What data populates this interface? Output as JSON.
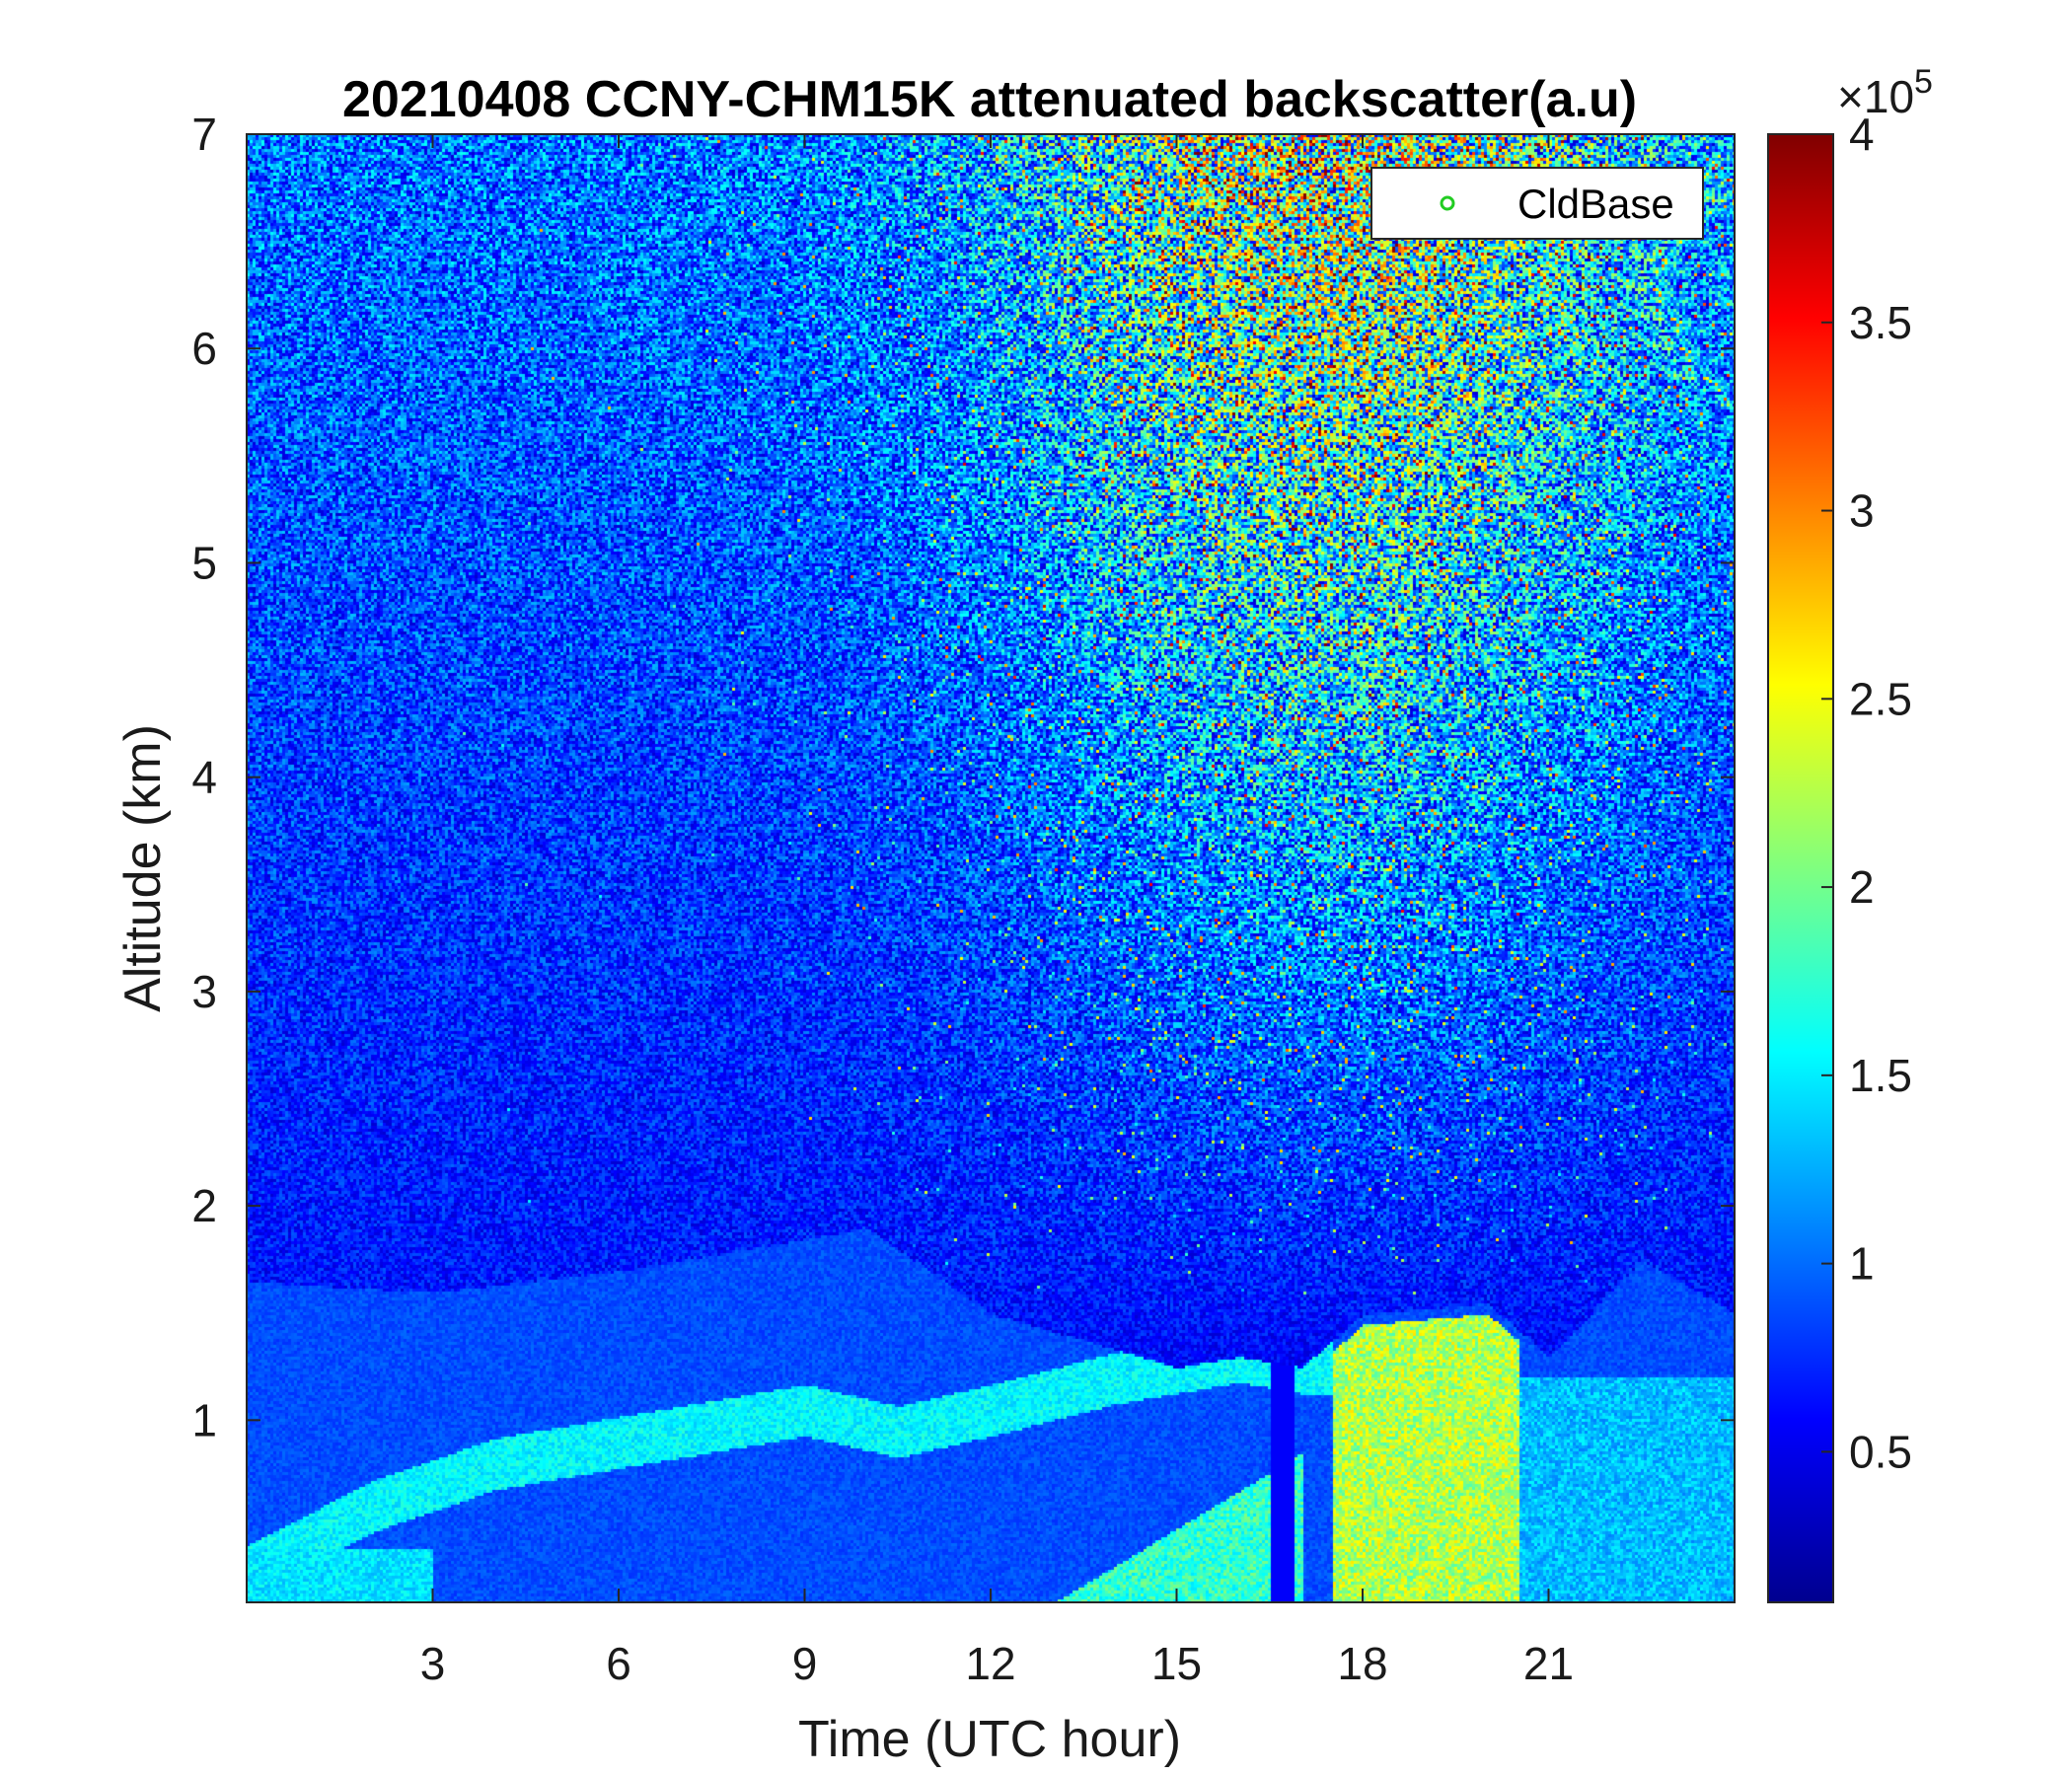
{
  "chart_data": {
    "type": "heatmap",
    "title": "20210408 CCNY-CHM15K attenuated backscatter(a.u)",
    "xlabel": "Time (UTC hour)",
    "ylabel": "Altitude (km)",
    "xlim": [
      0,
      24
    ],
    "ylim": [
      0.15,
      7
    ],
    "xticks": [
      "3",
      "6",
      "9",
      "12",
      "15",
      "18",
      "21"
    ],
    "yticks": [
      "1",
      "2",
      "3",
      "4",
      "5",
      "6",
      "7"
    ],
    "colorbar": {
      "colormap": "jet",
      "range": [
        0.1,
        4
      ],
      "ticks": [
        "0.5",
        "1",
        "1.5",
        "2",
        "2.5",
        "3",
        "3.5",
        "4"
      ],
      "exponent_label": "×10",
      "exponent": "5"
    },
    "legend": {
      "label": "CldBase",
      "marker": "circle",
      "color": "#22cc22",
      "placement": "top-right"
    },
    "boundary_layer_top_km": [
      [
        0,
        1.65
      ],
      [
        3,
        1.6
      ],
      [
        6,
        1.7
      ],
      [
        9,
        1.85
      ],
      [
        10,
        1.9
      ],
      [
        12,
        1.5
      ],
      [
        15,
        1.25
      ],
      [
        16,
        1.3
      ],
      [
        17,
        1.25
      ],
      [
        18,
        1.5
      ],
      [
        20,
        1.55
      ],
      [
        21,
        1.3
      ],
      [
        22.5,
        1.75
      ],
      [
        24,
        1.5
      ]
    ],
    "aerosol_layer_km": [
      [
        0,
        0.3
      ],
      [
        2,
        0.6
      ],
      [
        4,
        0.8
      ],
      [
        8,
        1.0
      ],
      [
        9,
        1.05
      ],
      [
        10.5,
        0.95
      ],
      [
        12,
        1.05
      ],
      [
        14,
        1.2
      ],
      [
        16,
        1.3
      ],
      [
        17,
        1.25
      ]
    ],
    "high_signal_region": {
      "hours": [
        17.5,
        20.5
      ],
      "altitude_km": [
        0.15,
        1.5
      ],
      "value_x1e5": 2.3
    }
  }
}
